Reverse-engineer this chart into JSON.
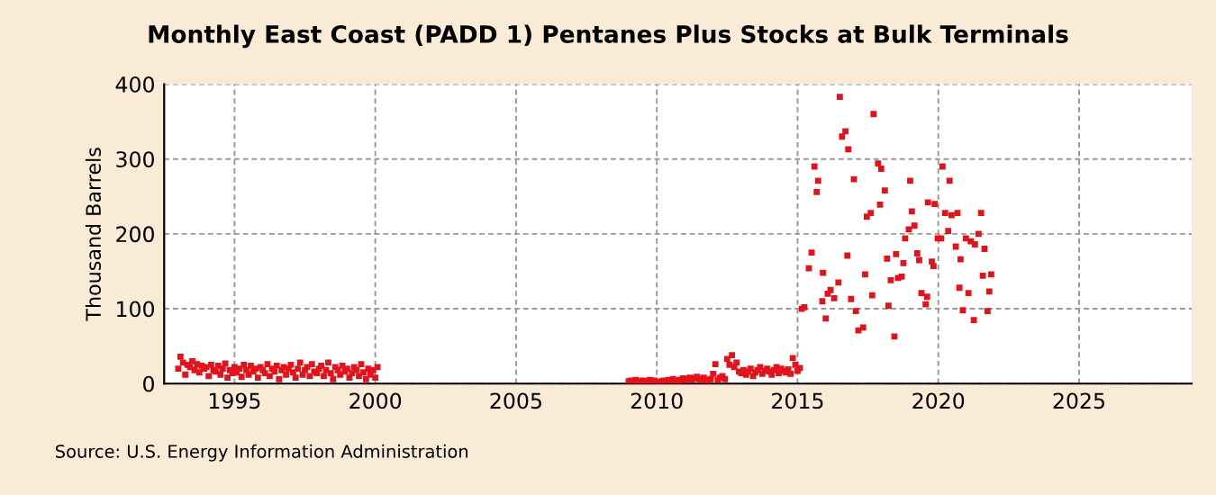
{
  "chart_data": {
    "type": "scatter",
    "title": "Monthly East Coast (PADD 1) Pentanes Plus Stocks at Bulk Terminals",
    "ylabel": "Thousand Barrels",
    "annotations": [
      "Source: U.S. Energy Information Administration"
    ],
    "x": [
      1993.0,
      1993.08,
      1993.17,
      1993.25,
      1993.33,
      1993.42,
      1993.5,
      1993.58,
      1993.67,
      1993.75,
      1993.83,
      1993.92,
      1994.0,
      1994.08,
      1994.17,
      1994.25,
      1994.33,
      1994.42,
      1994.5,
      1994.58,
      1994.67,
      1994.75,
      1994.83,
      1994.92,
      1995.0,
      1995.08,
      1995.17,
      1995.25,
      1995.33,
      1995.42,
      1995.5,
      1995.58,
      1995.67,
      1995.75,
      1995.83,
      1995.92,
      1996.0,
      1996.08,
      1996.17,
      1996.25,
      1996.33,
      1996.42,
      1996.5,
      1996.58,
      1996.67,
      1996.75,
      1996.83,
      1996.92,
      1997.0,
      1997.08,
      1997.17,
      1997.25,
      1997.33,
      1997.42,
      1997.5,
      1997.58,
      1997.67,
      1997.75,
      1997.83,
      1997.92,
      1998.0,
      1998.08,
      1998.17,
      1998.25,
      1998.33,
      1998.42,
      1998.5,
      1998.58,
      1998.67,
      1998.75,
      1998.83,
      1998.92,
      1999.0,
      1999.08,
      1999.17,
      1999.25,
      1999.33,
      1999.42,
      1999.5,
      1999.58,
      1999.67,
      1999.75,
      1999.83,
      1999.92,
      2000.0,
      2000.08,
      2009.0,
      2009.08,
      2009.17,
      2009.25,
      2009.33,
      2009.42,
      2009.5,
      2009.58,
      2009.67,
      2009.75,
      2009.83,
      2009.92,
      2010.0,
      2010.08,
      2010.17,
      2010.25,
      2010.33,
      2010.42,
      2010.5,
      2010.58,
      2010.67,
      2010.75,
      2010.83,
      2010.92,
      2011.0,
      2011.08,
      2011.17,
      2011.25,
      2011.33,
      2011.42,
      2011.5,
      2011.58,
      2011.67,
      2011.75,
      2011.83,
      2011.92,
      2012.0,
      2012.08,
      2012.17,
      2012.25,
      2012.33,
      2012.42,
      2012.5,
      2012.58,
      2012.67,
      2012.75,
      2012.83,
      2012.92,
      2013.0,
      2013.08,
      2013.17,
      2013.25,
      2013.33,
      2013.42,
      2013.5,
      2013.58,
      2013.67,
      2013.75,
      2013.83,
      2013.92,
      2014.0,
      2014.08,
      2014.17,
      2014.25,
      2014.33,
      2014.42,
      2014.5,
      2014.58,
      2014.67,
      2014.75,
      2014.83,
      2014.92,
      2015.0,
      2015.08,
      2015.15,
      2015.24,
      2015.4,
      2015.5,
      2015.6,
      2015.73,
      2015.68,
      2016.0,
      2015.9,
      2015.88,
      2016.07,
      2016.17,
      2016.3,
      2016.45,
      2016.5,
      2016.58,
      2016.7,
      2016.8,
      2016.77,
      2016.9,
      2017.0,
      2017.07,
      2017.16,
      2017.33,
      2017.4,
      2017.65,
      2017.46,
      2017.6,
      2017.7,
      2017.86,
      2017.97,
      2017.93,
      2018.1,
      2018.18,
      2018.23,
      2018.31,
      2018.44,
      2018.5,
      2018.57,
      2018.7,
      2018.76,
      2018.82,
      2018.95,
      2019.0,
      2019.06,
      2019.15,
      2019.25,
      2019.32,
      2019.4,
      2019.55,
      2019.6,
      2019.63,
      2019.77,
      2019.83,
      2019.87,
      2019.98,
      2020.15,
      2020.1,
      2020.24,
      2020.35,
      2020.4,
      2020.47,
      2020.62,
      2020.68,
      2020.79,
      2020.75,
      2020.87,
      2020.98,
      2021.07,
      2021.15,
      2021.26,
      2021.3,
      2021.43,
      2021.52,
      2021.58,
      2021.64,
      2021.75,
      2021.81,
      2021.88
    ],
    "series": [
      {
        "color": "#e3121b",
        "values": [
          20,
          36,
          28,
          12,
          25,
          22,
          30,
          18,
          26,
          15,
          24,
          20,
          22,
          10,
          25,
          18,
          16,
          24,
          12,
          20,
          27,
          8,
          18,
          14,
          22,
          15,
          20,
          9,
          25,
          18,
          12,
          24,
          16,
          20,
          8,
          22,
          18,
          14,
          26,
          10,
          20,
          16,
          24,
          6,
          18,
          22,
          12,
          20,
          25,
          15,
          8,
          20,
          28,
          12,
          18,
          22,
          10,
          26,
          16,
          14,
          20,
          24,
          10,
          18,
          28,
          14,
          6,
          22,
          18,
          12,
          24,
          16,
          20,
          8,
          14,
          22,
          18,
          10,
          26,
          15,
          6,
          20,
          12,
          18,
          8,
          22,
          3,
          4,
          2,
          5,
          3,
          2,
          4,
          1,
          3,
          5,
          2,
          4,
          2,
          1,
          3,
          4,
          2,
          5,
          3,
          6,
          4,
          2,
          5,
          7,
          4,
          6,
          8,
          5,
          7,
          9,
          6,
          4,
          8,
          5,
          3,
          6,
          13,
          26,
          5,
          8,
          10,
          6,
          33,
          25,
          38,
          22,
          28,
          16,
          14,
          18,
          12,
          16,
          20,
          10,
          15,
          18,
          22,
          13,
          17,
          20,
          16,
          12,
          18,
          22,
          14,
          20,
          17,
          15,
          19,
          13,
          34,
          25,
          17,
          21,
          100,
          102,
          154,
          175,
          290,
          271,
          256,
          87,
          148,
          110,
          120,
          125,
          114,
          135,
          383,
          330,
          337,
          313,
          171,
          113,
          273,
          97,
          71,
          75,
          146,
          118,
          223,
          228,
          360,
          294,
          287,
          239,
          258,
          167,
          104,
          138,
          63,
          173,
          141,
          143,
          161,
          194,
          206,
          271,
          230,
          211,
          174,
          165,
          121,
          106,
          116,
          242,
          163,
          157,
          240,
          194,
          290,
          194,
          228,
          204,
          271,
          225,
          183,
          228,
          166,
          128,
          98,
          194,
          121,
          190,
          85,
          186,
          200,
          228,
          144,
          180,
          97,
          123,
          146
        ]
      }
    ],
    "xlim": [
      1992.5,
      2029
    ],
    "xticks": [
      1995,
      2000,
      2005,
      2010,
      2015,
      2020,
      2025
    ],
    "ylim": [
      0,
      400
    ],
    "yticks": [
      0,
      100,
      200,
      300,
      400
    ],
    "grid": true,
    "marker": "square",
    "legend": false
  }
}
